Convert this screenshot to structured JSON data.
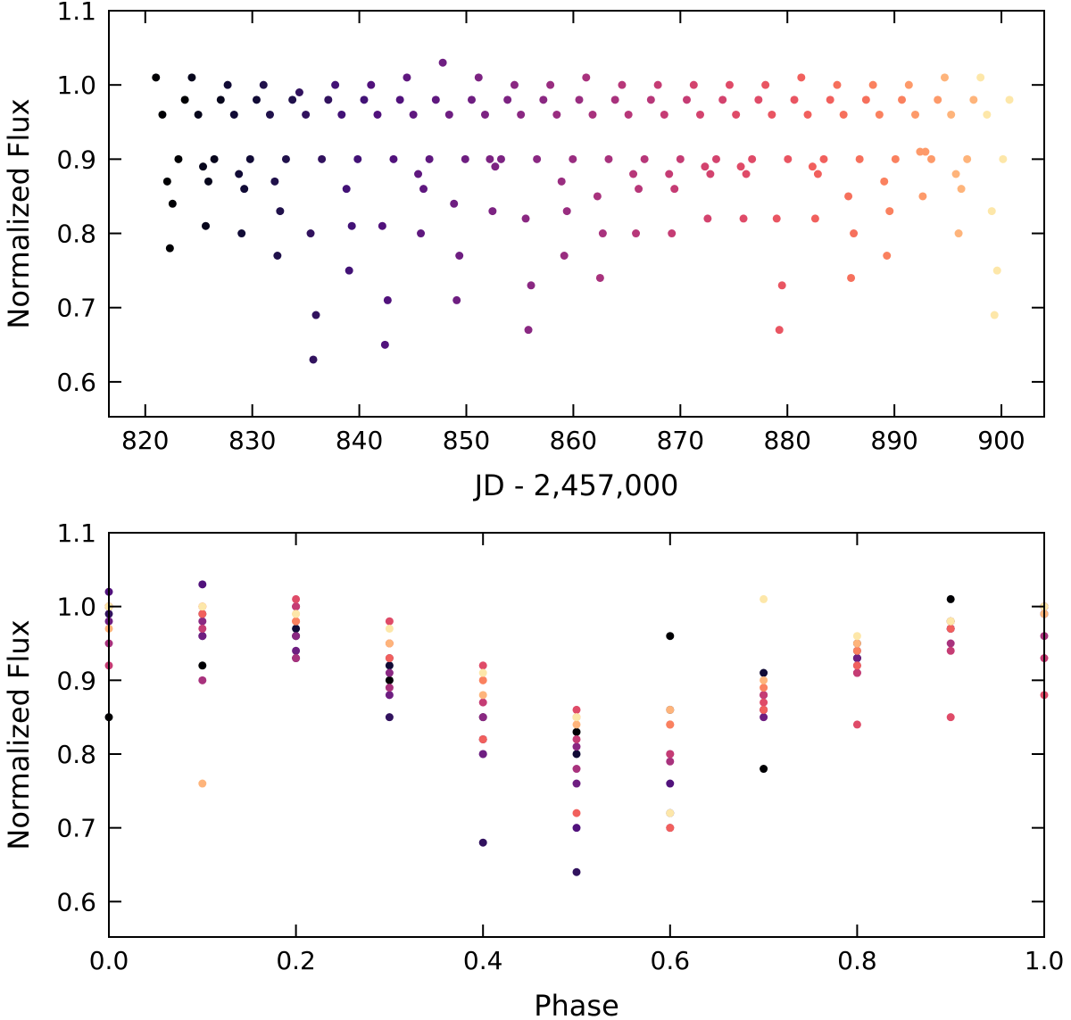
{
  "chart_data": [
    {
      "type": "scatter",
      "xlabel": "JD - 2,457,000",
      "ylabel": "Normalized Flux",
      "xlim": [
        816.6,
        904
      ],
      "ylim": [
        0.553,
        1.1
      ],
      "xticks": [
        820,
        830,
        840,
        850,
        860,
        870,
        880,
        890,
        900
      ],
      "yticks": [
        0.6,
        0.7,
        0.8,
        0.9,
        {
          "value": 1,
          "label": "1.0"
        },
        1.1
      ],
      "series": [
        {
          "color": "#000004",
          "x": [
            821.0,
            821.6,
            822.05,
            822.3,
            822.55,
            823.1,
            823.7
          ],
          "values": [
            1.01,
            0.96,
            0.87,
            0.78,
            0.84,
            0.9,
            0.98
          ]
        },
        {
          "color": "#07061c",
          "x": [
            824.35,
            824.95,
            825.4,
            825.65,
            825.9,
            826.45,
            827.05
          ],
          "values": [
            1.01,
            0.96,
            0.89,
            0.81,
            0.87,
            0.9,
            0.98
          ]
        },
        {
          "color": "#110b36",
          "x": [
            827.7,
            828.3,
            828.75,
            829.0,
            829.25,
            829.8,
            830.4
          ],
          "values": [
            1.0,
            0.96,
            0.88,
            0.8,
            0.86,
            0.9,
            0.98
          ]
        },
        {
          "color": "#20114b",
          "x": [
            831.05,
            831.65,
            832.1,
            832.35,
            832.6,
            833.15,
            833.75
          ],
          "values": [
            1.0,
            0.96,
            0.87,
            0.77,
            0.83,
            0.9,
            0.98
          ]
        },
        {
          "color": "#31125e",
          "x": [
            834.4,
            835.0,
            835.45,
            835.7,
            835.95,
            836.5,
            837.1
          ],
          "values": [
            0.99,
            0.96,
            0.8,
            0.63,
            0.69,
            0.9,
            0.98
          ]
        },
        {
          "color": "#421276",
          "x": [
            837.75,
            838.35,
            838.8,
            839.05,
            839.3,
            839.85,
            840.45
          ],
          "values": [
            1.0,
            0.96,
            0.86,
            0.75,
            0.81,
            0.9,
            0.98
          ]
        },
        {
          "color": "#51127c",
          "x": [
            841.1,
            841.7,
            842.15,
            842.4,
            842.65,
            843.2,
            843.8
          ],
          "values": [
            1.0,
            0.96,
            0.81,
            0.65,
            0.71,
            0.9,
            0.98
          ]
        },
        {
          "color": "#5f187f",
          "x": [
            844.45,
            845.05,
            845.5,
            845.75,
            846.0,
            846.55,
            847.15
          ],
          "values": [
            1.01,
            0.96,
            0.88,
            0.8,
            0.86,
            0.9,
            0.98
          ]
        },
        {
          "color": "#6e1e81",
          "x": [
            847.8,
            848.4,
            848.85,
            849.1,
            849.35,
            849.9,
            850.5
          ],
          "values": [
            1.03,
            0.96,
            0.84,
            0.71,
            0.77,
            0.9,
            0.98
          ]
        },
        {
          "color": "#7c2382",
          "x": [
            851.15,
            851.75,
            852.2,
            852.45,
            852.7,
            853.25,
            853.85
          ],
          "values": [
            1.01,
            0.96,
            0.9,
            0.83,
            0.89,
            0.9,
            0.98
          ]
        },
        {
          "color": "#8a2882",
          "x": [
            854.5,
            855.1,
            855.55,
            855.8,
            856.05,
            856.6,
            857.2
          ],
          "values": [
            1.0,
            0.96,
            0.82,
            0.67,
            0.73,
            0.9,
            0.98
          ]
        },
        {
          "color": "#992d80",
          "x": [
            857.85,
            858.45,
            858.9,
            859.15,
            859.4,
            859.95,
            860.55
          ],
          "values": [
            1.0,
            0.96,
            0.87,
            0.77,
            0.83,
            0.9,
            0.98
          ]
        },
        {
          "color": "#a8327d",
          "x": [
            861.2,
            861.8,
            862.25,
            862.5,
            862.75,
            863.3,
            863.9
          ],
          "values": [
            1.01,
            0.96,
            0.85,
            0.74,
            0.8,
            0.9,
            0.98
          ]
        },
        {
          "color": "#b73779",
          "x": [
            864.55,
            865.15,
            865.6,
            865.85,
            866.1,
            866.65,
            867.25
          ],
          "values": [
            1.0,
            0.96,
            0.88,
            0.8,
            0.86,
            0.9,
            0.98
          ]
        },
        {
          "color": "#c53c74",
          "x": [
            867.9,
            868.5,
            868.95,
            869.2,
            869.45,
            870.0,
            870.6
          ],
          "values": [
            1.0,
            0.96,
            0.88,
            0.8,
            0.86,
            0.9,
            0.98
          ]
        },
        {
          "color": "#d3436e",
          "x": [
            871.25,
            871.85,
            872.3,
            872.55,
            872.8,
            873.35,
            873.95
          ],
          "values": [
            1.0,
            0.96,
            0.89,
            0.82,
            0.88,
            0.9,
            0.98
          ]
        },
        {
          "color": "#df4b68",
          "x": [
            874.6,
            875.2,
            875.65,
            875.9,
            876.15,
            876.7,
            877.3
          ],
          "values": [
            1.0,
            0.96,
            0.89,
            0.82,
            0.88,
            0.9,
            0.98
          ]
        },
        {
          "color": "#e95562",
          "x": [
            877.95,
            878.55,
            879.0,
            879.25,
            879.5,
            880.05,
            880.65
          ],
          "values": [
            1.0,
            0.96,
            0.82,
            0.67,
            0.73,
            0.9,
            0.98
          ]
        },
        {
          "color": "#f1605d",
          "x": [
            881.3,
            881.9,
            882.35,
            882.6,
            882.85,
            883.4,
            884.0
          ],
          "values": [
            1.01,
            0.96,
            0.89,
            0.82,
            0.88,
            0.9,
            0.98
          ]
        },
        {
          "color": "#f6705c",
          "x": [
            884.65,
            885.25,
            885.7,
            885.95,
            886.2,
            886.75,
            887.35
          ],
          "values": [
            1.0,
            0.96,
            0.85,
            0.74,
            0.8,
            0.9,
            0.98
          ]
        },
        {
          "color": "#fa815f",
          "x": [
            888.0,
            888.6,
            889.05,
            889.3,
            889.55,
            890.1,
            890.7
          ],
          "values": [
            1.0,
            0.96,
            0.87,
            0.77,
            0.83,
            0.9,
            0.98
          ]
        },
        {
          "color": "#fd9a6a",
          "x": [
            891.35,
            891.95,
            892.4,
            892.65,
            892.9,
            893.45,
            894.05
          ],
          "values": [
            1.0,
            0.96,
            0.91,
            0.85,
            0.91,
            0.9,
            0.98
          ]
        },
        {
          "color": "#feb47b",
          "x": [
            894.7,
            895.3,
            895.75,
            896.0,
            896.25,
            896.8,
            897.4
          ],
          "values": [
            1.01,
            0.96,
            0.88,
            0.8,
            0.86,
            0.9,
            0.98
          ]
        },
        {
          "color": "#fde7a9",
          "x": [
            898.05,
            898.65,
            899.1,
            899.35,
            899.6,
            900.15,
            900.75
          ],
          "values": [
            1.01,
            0.96,
            0.83,
            0.69,
            0.75,
            0.9,
            0.98
          ]
        }
      ]
    },
    {
      "type": "scatter",
      "xlabel": "Phase",
      "ylabel": "Normalized Flux",
      "xlim": [
        0,
        1
      ],
      "ylim": [
        0.552,
        1.1
      ],
      "xticks": [
        {
          "value": 0,
          "label": "0.0"
        },
        0.2,
        0.4,
        0.6,
        0.8,
        {
          "value": 1,
          "label": "1.0"
        }
      ],
      "yticks": [
        0.6,
        0.7,
        0.8,
        0.9,
        {
          "value": 1,
          "label": "1.0"
        },
        1.1
      ],
      "x": [
        0,
        0.1,
        0.2,
        0.3,
        0.4,
        0.5,
        0.6,
        0.7,
        0.8,
        0.9,
        1.0
      ],
      "series": [
        {
          "color": "#000004",
          "values": [
            0.85,
            0.92,
            0.96,
            0.9,
            0.85,
            0.83,
            0.96,
            0.78,
            0.93,
            1.01,
            1.0
          ]
        },
        {
          "color": "#110b36",
          "values": [
            1.0,
            0.99,
            0.97,
            0.92,
            0.82,
            0.8,
            0.86,
            0.91,
            0.95,
            0.98,
            1.0
          ]
        },
        {
          "color": "#31125e",
          "values": [
            0.99,
            0.96,
            0.93,
            0.85,
            0.68,
            0.64,
            0.72,
            0.86,
            0.93,
            0.97,
            0.99
          ]
        },
        {
          "color": "#51127c",
          "values": [
            1.02,
            1.03,
            1.0,
            0.93,
            0.8,
            0.7,
            0.76,
            0.88,
            0.94,
            0.98,
            1.0
          ]
        },
        {
          "color": "#6e1e81",
          "values": [
            0.98,
            0.96,
            0.94,
            0.88,
            0.8,
            0.76,
            0.7,
            0.85,
            0.93,
            0.97,
            0.99
          ]
        },
        {
          "color": "#8a2882",
          "values": [
            1.0,
            0.98,
            0.96,
            0.91,
            0.85,
            0.81,
            0.8,
            0.86,
            0.92,
            0.97,
            1.0
          ]
        },
        {
          "color": "#a8327d",
          "values": [
            0.95,
            0.9,
            0.93,
            0.89,
            0.82,
            0.78,
            0.79,
            0.86,
            0.91,
            0.95,
            0.96
          ]
        },
        {
          "color": "#c53c74",
          "values": [
            0.92,
            0.97,
            1.0,
            0.95,
            0.87,
            0.82,
            0.8,
            0.88,
            0.91,
            0.94,
            0.93
          ]
        },
        {
          "color": "#df4b68",
          "values": [
            1.0,
            1.0,
            1.01,
            0.98,
            0.92,
            0.86,
            0.84,
            0.87,
            0.84,
            0.85,
            0.88
          ]
        },
        {
          "color": "#f1605d",
          "values": [
            1.0,
            0.99,
            0.98,
            0.93,
            0.82,
            0.72,
            0.7,
            0.86,
            0.92,
            0.97,
            1.0
          ]
        },
        {
          "color": "#fa815f",
          "values": [
            1.0,
            1.0,
            0.98,
            0.95,
            0.9,
            0.85,
            0.84,
            0.89,
            0.94,
            0.98,
            1.0
          ]
        },
        {
          "color": "#feb47b",
          "values": [
            0.97,
            0.76,
            0.99,
            0.95,
            0.88,
            0.84,
            0.86,
            0.9,
            0.95,
            0.98,
            0.99
          ]
        },
        {
          "color": "#fde7a9",
          "values": [
            1.0,
            1.0,
            0.99,
            0.97,
            0.91,
            0.85,
            0.72,
            1.01,
            0.96,
            0.98,
            1.0
          ]
        }
      ]
    }
  ]
}
